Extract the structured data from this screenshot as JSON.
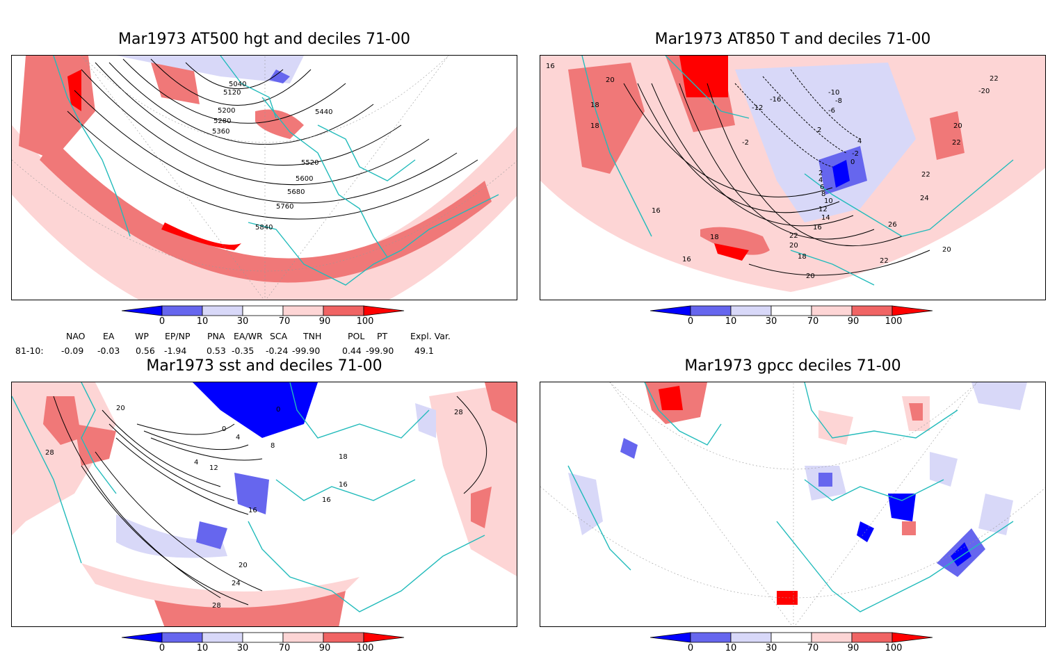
{
  "panels": [
    {
      "id": "p1",
      "title": "Mar1973 AT500 hgt and deciles 71-00",
      "contour_labels": [
        "5040",
        "5120",
        "5200",
        "5280",
        "5360",
        "5440",
        "5520",
        "5600",
        "5680",
        "5760",
        "5840"
      ]
    },
    {
      "id": "p2",
      "title": "Mar1973 AT850 T and deciles 71-00",
      "contour_labels": [
        "16",
        "20",
        "18",
        "18",
        "22",
        "-20",
        "-10",
        "-8",
        "-6",
        "-16",
        "-12",
        "-2",
        "2",
        "4",
        "-2",
        "0",
        "2",
        "4",
        "6",
        "8",
        "10",
        "12",
        "14",
        "16",
        "18",
        "20",
        "22",
        "24",
        "26",
        "22",
        "20",
        "16",
        "20",
        "22",
        "20",
        "22",
        "16",
        "18"
      ]
    },
    {
      "id": "p3",
      "title": "Mar1973 sst and deciles 71-00",
      "contour_labels": [
        "20",
        "28",
        "0",
        "0",
        "4",
        "4",
        "8",
        "12",
        "16",
        "16",
        "16",
        "20",
        "24",
        "28",
        "28",
        "18"
      ]
    },
    {
      "id": "p4",
      "title": "Mar1973 gpcc deciles 71-00",
      "contour_labels": []
    }
  ],
  "colorbar": {
    "labels": [
      "0",
      "10",
      "30",
      "70",
      "90",
      "100"
    ],
    "colors": [
      "#0000ff",
      "#6666ee",
      "#d8d8f8",
      "#ffffff",
      "#fdd5d5",
      "#f06464",
      "#ff0000"
    ]
  },
  "indices": {
    "headers": [
      "NAO",
      "EA",
      "WP",
      "EP/NP",
      "PNA",
      "EA/WR",
      "SCA",
      "TNH",
      "POL",
      "PT",
      "Expl. Var."
    ],
    "row_label": "81-10:",
    "values": [
      "-0.09",
      "-0.03",
      "0.56",
      "-1.94",
      "0.53",
      "-0.35",
      "-0.24",
      "-99.90",
      "0.44",
      "-99.90",
      "49.1"
    ]
  },
  "colors": {
    "coast": "#22bbbb",
    "contour": "#000000",
    "grid": "#999999"
  }
}
